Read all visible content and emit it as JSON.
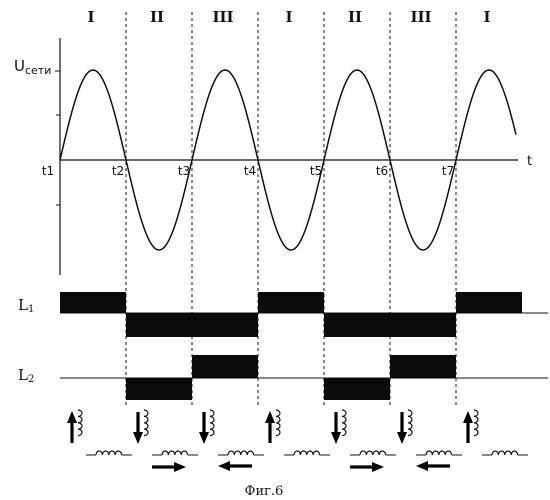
{
  "phases": [
    "I",
    "II",
    "III",
    "I",
    "II",
    "III",
    "I"
  ],
  "y_axis_label": "U",
  "y_axis_subscript": "сети",
  "x_axis_label": "t",
  "time_ticks": [
    "t1",
    "t2",
    "t3",
    "t4",
    "t5",
    "t6",
    "t7"
  ],
  "rows": {
    "l1": {
      "letter": "L",
      "sub": "1",
      "levels": [
        1,
        -1,
        -1,
        1,
        -1,
        -1,
        1
      ]
    },
    "l2": {
      "letter": "L",
      "sub": "2",
      "levels": [
        0,
        -1,
        1,
        0,
        -1,
        1,
        0
      ]
    }
  },
  "arrows": {
    "vertical": [
      "up",
      "down",
      "down",
      "up",
      "down",
      "down",
      "up"
    ],
    "horizontal": [
      "none",
      "right",
      "left",
      "none",
      "right",
      "left",
      "none"
    ]
  },
  "caption": "Фиг.6"
}
